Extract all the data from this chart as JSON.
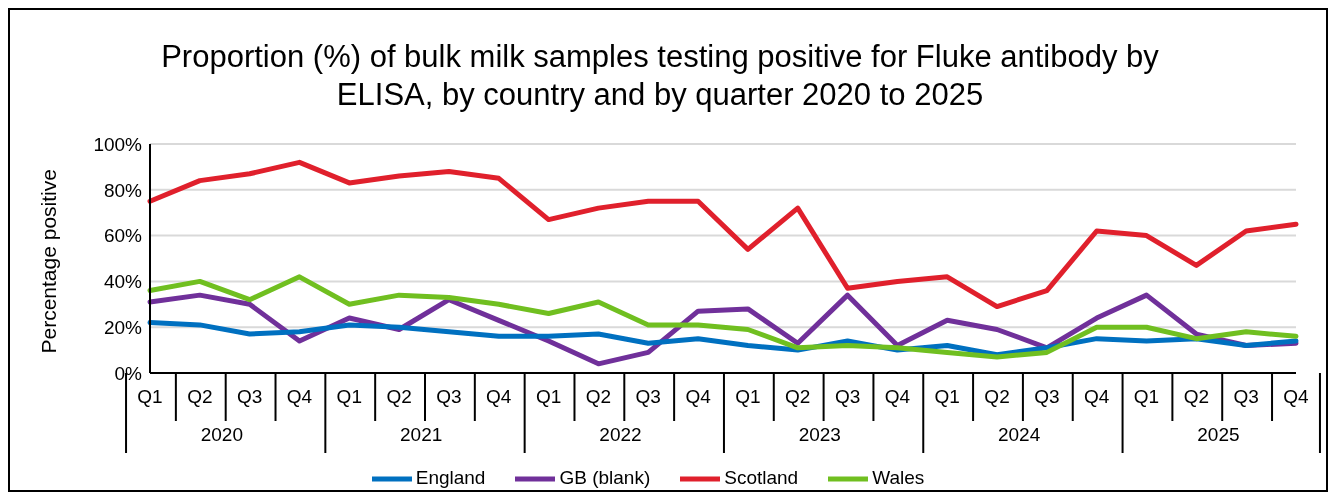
{
  "chart_data": {
    "type": "line",
    "title": "Proportion (%) of bulk milk samples testing positive for Fluke antibody by ELISA, by country and by quarter 2020 to 2025",
    "ylabel": "Percentage positive",
    "categories": [
      "Q1",
      "Q2",
      "Q3",
      "Q4",
      "Q1",
      "Q2",
      "Q3",
      "Q4",
      "Q1",
      "Q2",
      "Q3",
      "Q4",
      "Q1",
      "Q2",
      "Q3",
      "Q4",
      "Q1",
      "Q2",
      "Q3",
      "Q4",
      "Q1",
      "Q2",
      "Q3",
      "Q4"
    ],
    "annotations": [
      "2020",
      "2021",
      "2022",
      "2023",
      "2024",
      "2025"
    ],
    "series": [
      {
        "name": "GB (blank)",
        "color": "#70309a",
        "values": [
          31,
          34,
          30,
          14,
          24,
          19,
          32,
          23,
          14,
          4,
          9,
          27,
          28,
          13,
          34,
          12,
          23,
          19,
          11,
          24,
          34,
          17,
          12,
          13
        ]
      },
      {
        "name": "England",
        "color": "#0070c0",
        "values": [
          22,
          21,
          17,
          18,
          21,
          20,
          18,
          16,
          16,
          17,
          13,
          15,
          12,
          10,
          14,
          10,
          12,
          8,
          11,
          15,
          14,
          15,
          12,
          14
        ]
      },
      {
        "name": "Scotland",
        "color": "#e0202c",
        "values": [
          75,
          84,
          87,
          92,
          83,
          86,
          88,
          85,
          67,
          72,
          75,
          75,
          54,
          72,
          37,
          40,
          42,
          29,
          36,
          62,
          60,
          47,
          62,
          65
        ]
      },
      {
        "name": "Wales",
        "color": "#70bf20",
        "values": [
          36,
          40,
          32,
          42,
          30,
          34,
          33,
          30,
          26,
          31,
          21,
          21,
          19,
          11,
          12,
          11,
          9,
          7,
          9,
          20,
          20,
          15,
          18,
          16
        ]
      }
    ],
    "ylim": [
      0,
      100
    ],
    "yticks": [
      {
        "value": 0,
        "label": "0%"
      },
      {
        "value": 20,
        "label": "20%"
      },
      {
        "value": 40,
        "label": "40%"
      },
      {
        "value": 60,
        "label": "60%"
      },
      {
        "value": 80,
        "label": "80%"
      },
      {
        "value": 100,
        "label": "100%"
      }
    ],
    "grid": "y",
    "legend": "bottom",
    "marker": "none",
    "line_style": "solid"
  }
}
